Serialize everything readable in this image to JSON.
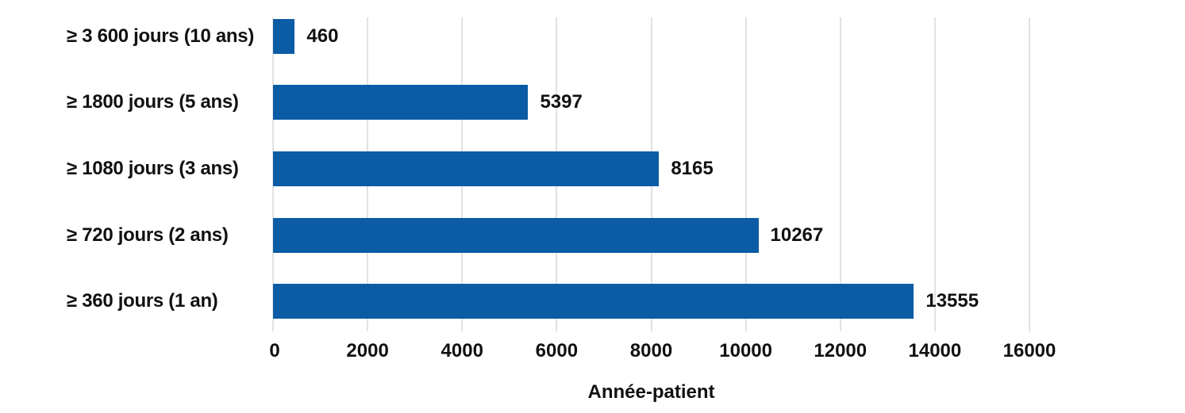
{
  "chart_data": {
    "type": "bar",
    "orientation": "horizontal",
    "title": "",
    "categories": [
      "≥ 3 600 jours (10 ans)",
      "≥ 1800 jours (5 ans)",
      "≥ 1080 jours (3 ans)",
      "≥ 720 jours (2 ans)",
      "≥ 360 jours (1 an)"
    ],
    "values": [
      460,
      5397,
      8165,
      10267,
      13555
    ],
    "value_labels": [
      "460",
      "5397",
      "8165",
      "10267",
      "13555"
    ],
    "xlabel": "Année-patient",
    "ylabel": "",
    "xlim": [
      0,
      16000
    ],
    "xticks": [
      0,
      2000,
      4000,
      6000,
      8000,
      10000,
      12000,
      14000,
      16000
    ],
    "xtick_labels": [
      "0",
      "2000",
      "4000",
      "6000",
      "8000",
      "10000",
      "12000",
      "14000",
      "16000"
    ],
    "grid": "vertical",
    "legend": "none",
    "colors": {
      "bar": "#0b5ca5",
      "gridline": "#e2e2e2",
      "text": "#111111",
      "background": "#ffffff"
    }
  }
}
